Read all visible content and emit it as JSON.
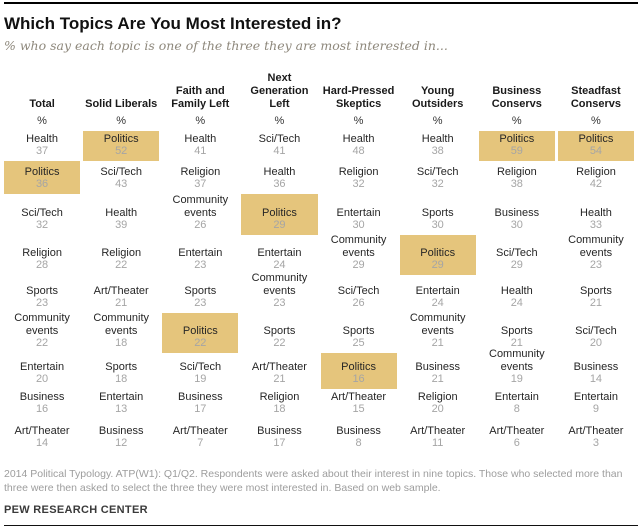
{
  "header": {
    "title": "Which Topics Are You Most Interested in?",
    "subtitle": "% who say each topic is one of the three they are most interested in..."
  },
  "chart_data": {
    "type": "table",
    "unit_label": "%",
    "columns": [
      "Total",
      "Solid Liberals",
      "Faith and Family Left",
      "Next Generation Left",
      "Hard-Pressed Skeptics",
      "Young Outsiders",
      "Business Conservs",
      "Steadfast Conservs"
    ],
    "highlight_meaning": "Politics cell highlighted in each column",
    "rows": [
      [
        {
          "topic": "Health",
          "value": 37,
          "highlight": false
        },
        {
          "topic": "Politics",
          "value": 52,
          "highlight": true
        },
        {
          "topic": "Health",
          "value": 41,
          "highlight": false
        },
        {
          "topic": "Sci/Tech",
          "value": 41,
          "highlight": false
        },
        {
          "topic": "Health",
          "value": 48,
          "highlight": false
        },
        {
          "topic": "Health",
          "value": 38,
          "highlight": false
        },
        {
          "topic": "Politics",
          "value": 59,
          "highlight": true
        },
        {
          "topic": "Politics",
          "value": 54,
          "highlight": true
        }
      ],
      [
        {
          "topic": "Politics",
          "value": 36,
          "highlight": true
        },
        {
          "topic": "Sci/Tech",
          "value": 43,
          "highlight": false
        },
        {
          "topic": "Religion",
          "value": 37,
          "highlight": false
        },
        {
          "topic": "Health",
          "value": 36,
          "highlight": false
        },
        {
          "topic": "Religion",
          "value": 32,
          "highlight": false
        },
        {
          "topic": "Sci/Tech",
          "value": 32,
          "highlight": false
        },
        {
          "topic": "Religion",
          "value": 38,
          "highlight": false
        },
        {
          "topic": "Religion",
          "value": 42,
          "highlight": false
        }
      ],
      [
        {
          "topic": "Sci/Tech",
          "value": 32,
          "highlight": false
        },
        {
          "topic": "Health",
          "value": 39,
          "highlight": false
        },
        {
          "topic": "Community events",
          "value": 26,
          "highlight": false
        },
        {
          "topic": "Politics",
          "value": 29,
          "highlight": true
        },
        {
          "topic": "Entertain",
          "value": 30,
          "highlight": false
        },
        {
          "topic": "Sports",
          "value": 30,
          "highlight": false
        },
        {
          "topic": "Business",
          "value": 30,
          "highlight": false
        },
        {
          "topic": "Health",
          "value": 33,
          "highlight": false
        }
      ],
      [
        {
          "topic": "Religion",
          "value": 28,
          "highlight": false
        },
        {
          "topic": "Religion",
          "value": 22,
          "highlight": false
        },
        {
          "topic": "Entertain",
          "value": 23,
          "highlight": false
        },
        {
          "topic": "Entertain",
          "value": 24,
          "highlight": false
        },
        {
          "topic": "Community events",
          "value": 29,
          "highlight": false
        },
        {
          "topic": "Politics",
          "value": 29,
          "highlight": true
        },
        {
          "topic": "Sci/Tech",
          "value": 29,
          "highlight": false
        },
        {
          "topic": "Community events",
          "value": 23,
          "highlight": false
        }
      ],
      [
        {
          "topic": "Sports",
          "value": 23,
          "highlight": false
        },
        {
          "topic": "Art/Theater",
          "value": 21,
          "highlight": false
        },
        {
          "topic": "Sports",
          "value": 23,
          "highlight": false
        },
        {
          "topic": "Community events",
          "value": 23,
          "highlight": false
        },
        {
          "topic": "Sci/Tech",
          "value": 26,
          "highlight": false
        },
        {
          "topic": "Entertain",
          "value": 24,
          "highlight": false
        },
        {
          "topic": "Health",
          "value": 24,
          "highlight": false
        },
        {
          "topic": "Sports",
          "value": 21,
          "highlight": false
        }
      ],
      [
        {
          "topic": "Community events",
          "value": 22,
          "highlight": false
        },
        {
          "topic": "Community events",
          "value": 18,
          "highlight": false
        },
        {
          "topic": "Politics",
          "value": 22,
          "highlight": true
        },
        {
          "topic": "Sports",
          "value": 22,
          "highlight": false
        },
        {
          "topic": "Sports",
          "value": 25,
          "highlight": false
        },
        {
          "topic": "Community events",
          "value": 21,
          "highlight": false
        },
        {
          "topic": "Sports",
          "value": 21,
          "highlight": false
        },
        {
          "topic": "Sci/Tech",
          "value": 20,
          "highlight": false
        }
      ],
      [
        {
          "topic": "Entertain",
          "value": 20,
          "highlight": false
        },
        {
          "topic": "Sports",
          "value": 18,
          "highlight": false
        },
        {
          "topic": "Sci/Tech",
          "value": 19,
          "highlight": false
        },
        {
          "topic": "Art/Theater",
          "value": 21,
          "highlight": false
        },
        {
          "topic": "Politics",
          "value": 16,
          "highlight": true
        },
        {
          "topic": "Business",
          "value": 21,
          "highlight": false
        },
        {
          "topic": "Community events",
          "value": 19,
          "highlight": false
        },
        {
          "topic": "Business",
          "value": 14,
          "highlight": false
        }
      ],
      [
        {
          "topic": "Business",
          "value": 16,
          "highlight": false
        },
        {
          "topic": "Entertain",
          "value": 13,
          "highlight": false
        },
        {
          "topic": "Business",
          "value": 17,
          "highlight": false
        },
        {
          "topic": "Religion",
          "value": 18,
          "highlight": false
        },
        {
          "topic": "Art/Theater",
          "value": 15,
          "highlight": false
        },
        {
          "topic": "Religion",
          "value": 20,
          "highlight": false
        },
        {
          "topic": "Entertain",
          "value": 8,
          "highlight": false
        },
        {
          "topic": "Entertain",
          "value": 9,
          "highlight": false
        }
      ],
      [
        {
          "topic": "Art/Theater",
          "value": 14,
          "highlight": false
        },
        {
          "topic": "Business",
          "value": 12,
          "highlight": false
        },
        {
          "topic": "Art/Theater",
          "value": 7,
          "highlight": false
        },
        {
          "topic": "Business",
          "value": 17,
          "highlight": false
        },
        {
          "topic": "Business",
          "value": 8,
          "highlight": false
        },
        {
          "topic": "Art/Theater",
          "value": 11,
          "highlight": false
        },
        {
          "topic": "Art/Theater",
          "value": 6,
          "highlight": false
        },
        {
          "topic": "Art/Theater",
          "value": 3,
          "highlight": false
        }
      ]
    ]
  },
  "footer": {
    "note": "2014 Political Typology. ATP(W1): Q1/Q2. Respondents were asked about their interest in nine topics. Those who selected more than three were then asked to select the three they were most interested in. Based on web sample.",
    "source": "PEW RESEARCH CENTER"
  },
  "colors": {
    "highlight": "#e5c57c",
    "topic_text": "#262626",
    "value_text": "#a5a5a5",
    "subtitle_text": "#8e887c",
    "note_text": "#9d9d9d"
  }
}
